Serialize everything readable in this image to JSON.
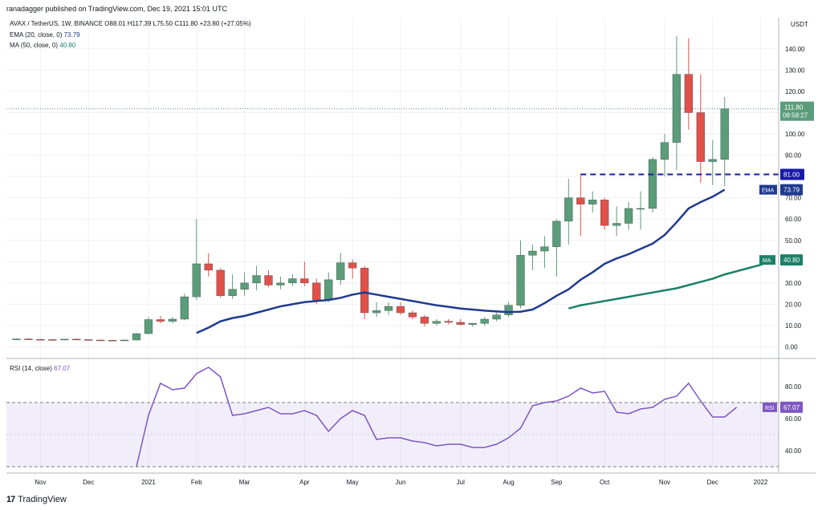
{
  "header": {
    "published": "ranadagger published on TradingView.com, Dec 19, 2021 15:01 UTC",
    "symbol_line": "AVAX / TetherUS, 1W, BINANCE",
    "ohlc": "O88.01 H117.39 L75.50 C111.80 +23.80 (+27.05%)",
    "ema_label": "EMA (20, close, 0)",
    "ema_value": "73.79",
    "ma_label": "MA (50, close, 0)",
    "ma_value": "40.80",
    "rsi_label": "RSI (14, close)",
    "rsi_value": "67.07"
  },
  "currency": "USDT",
  "footer": {
    "logo": "17",
    "brand": "TradingView"
  },
  "colors": {
    "up": "#5b9c7a",
    "down": "#e2504a",
    "ema": "#1f3a8f",
    "ma": "#1b8067",
    "rsi": "#7e57c2",
    "level": "#1a1aa8"
  },
  "chart_data": [
    {
      "type": "candlestick",
      "title": "AVAX / TetherUS, 1W, BINANCE",
      "ylim": [
        -5,
        150
      ],
      "y_ticks": [
        0,
        10,
        20,
        30,
        40,
        50,
        60,
        70,
        80,
        90,
        100,
        110,
        120,
        130,
        140
      ],
      "y_tick_labels": [
        "0.00",
        "10.00",
        "20.00",
        "30.00",
        "40.00",
        "50.00",
        "60.00",
        "70.00",
        "80.00",
        "90.00",
        "100.00",
        "110.00",
        "120.00",
        "130.00",
        "140.00"
      ],
      "x_ticks": [
        {
          "label": "Nov",
          "week": 2
        },
        {
          "label": "Dec",
          "week": 6
        },
        {
          "label": "2021",
          "week": 11
        },
        {
          "label": "Feb",
          "week": 15
        },
        {
          "label": "Mar",
          "week": 19
        },
        {
          "label": "Apr",
          "week": 24
        },
        {
          "label": "May",
          "week": 28
        },
        {
          "label": "Jun",
          "week": 32
        },
        {
          "label": "Jul",
          "week": 37
        },
        {
          "label": "Aug",
          "week": 41
        },
        {
          "label": "Sep",
          "week": 45
        },
        {
          "label": "Oct",
          "week": 49
        },
        {
          "label": "Nov",
          "week": 54
        },
        {
          "label": "Dec",
          "week": 58
        },
        {
          "label": "2022",
          "week": 62
        }
      ],
      "weeks_total": 64,
      "candles": [
        [
          3.6,
          4.0,
          3.3,
          3.7
        ],
        [
          3.7,
          3.9,
          3.4,
          3.5
        ],
        [
          3.5,
          3.8,
          3.2,
          3.4
        ],
        [
          3.4,
          3.6,
          3.1,
          3.3
        ],
        [
          3.3,
          3.7,
          3.1,
          3.6
        ],
        [
          3.6,
          3.9,
          3.3,
          3.4
        ],
        [
          3.4,
          3.6,
          3.0,
          3.2
        ],
        [
          3.2,
          3.4,
          2.9,
          3.1
        ],
        [
          3.1,
          3.3,
          2.8,
          3.0
        ],
        [
          3.0,
          3.4,
          2.7,
          3.2
        ],
        [
          3.2,
          6.5,
          3.0,
          6.2
        ],
        [
          6.2,
          14.0,
          5.8,
          12.8
        ],
        [
          12.8,
          14.5,
          11.0,
          12.0
        ],
        [
          12.0,
          14.0,
          11.0,
          13.0
        ],
        [
          13.0,
          25.0,
          12.5,
          23.5
        ],
        [
          23.5,
          60.0,
          22.0,
          39.0
        ],
        [
          39.0,
          44.0,
          33.0,
          36.0
        ],
        [
          36.0,
          37.0,
          23.0,
          24.0
        ],
        [
          24.0,
          34.0,
          22.5,
          27.0
        ],
        [
          27.0,
          35.0,
          24.0,
          30.0
        ],
        [
          30.0,
          38.0,
          26.5,
          33.5
        ],
        [
          33.5,
          36.0,
          28.0,
          29.0
        ],
        [
          29.0,
          33.0,
          27.0,
          30.0
        ],
        [
          30.0,
          34.0,
          28.5,
          32.0
        ],
        [
          32.0,
          40.0,
          28.5,
          30.0
        ],
        [
          30.0,
          32.0,
          20.0,
          22.0
        ],
        [
          22.0,
          35.0,
          21.0,
          31.5
        ],
        [
          31.5,
          44.0,
          29.0,
          39.5
        ],
        [
          39.5,
          41.0,
          32.0,
          37.0
        ],
        [
          37.0,
          38.0,
          13.0,
          16.0
        ],
        [
          16.0,
          21.0,
          14.0,
          17.0
        ],
        [
          17.0,
          21.0,
          15.0,
          19.0
        ],
        [
          19.0,
          21.0,
          15.0,
          16.0
        ],
        [
          16.0,
          17.0,
          13.0,
          14.0
        ],
        [
          14.0,
          15.0,
          9.5,
          11.0
        ],
        [
          11.0,
          13.0,
          10.0,
          12.0
        ],
        [
          12.0,
          13.0,
          10.5,
          11.5
        ],
        [
          11.5,
          13.0,
          10.0,
          10.5
        ],
        [
          10.5,
          11.0,
          9.5,
          11.0
        ],
        [
          11.0,
          14.0,
          10.0,
          13.0
        ],
        [
          13.0,
          16.0,
          12.0,
          15.0
        ],
        [
          15.0,
          21.0,
          14.0,
          19.5
        ],
        [
          19.5,
          50.0,
          18.0,
          43.0
        ],
        [
          43.0,
          48.0,
          36.0,
          45.0
        ],
        [
          45.0,
          52.0,
          37.0,
          47.0
        ],
        [
          47.0,
          60.0,
          33.0,
          59.0
        ],
        [
          59.0,
          79.0,
          48.0,
          70.0
        ],
        [
          70.0,
          81.0,
          52.0,
          67.0
        ],
        [
          67.0,
          73.0,
          63.0,
          69.0
        ],
        [
          69.0,
          70.0,
          55.0,
          57.0
        ],
        [
          57.0,
          66.0,
          52.0,
          58.0
        ],
        [
          58.0,
          68.0,
          55.0,
          65.0
        ],
        [
          65.0,
          73.0,
          55.0,
          65.0
        ],
        [
          65.0,
          89.0,
          63.0,
          88.0
        ],
        [
          88.0,
          100.0,
          80.0,
          96.0
        ],
        [
          96.0,
          146.0,
          83.0,
          128.0
        ],
        [
          128.0,
          145.0,
          102.0,
          110.0
        ],
        [
          110.0,
          128.0,
          77.0,
          87.0
        ],
        [
          87.0,
          97.0,
          76.0,
          88.0
        ],
        [
          88.01,
          117.39,
          75.5,
          111.8
        ]
      ],
      "ema": {
        "name": "EMA",
        "start_week": 15,
        "values": [
          6.5,
          9.0,
          12.0,
          13.5,
          14.5,
          16.0,
          17.5,
          19.0,
          20.0,
          21.0,
          21.5,
          22.0,
          23.0,
          24.5,
          25.5,
          24.5,
          23.5,
          22.5,
          21.5,
          20.5,
          19.5,
          18.8,
          18.0,
          17.5,
          17.0,
          16.6,
          16.3,
          16.5,
          17.5,
          20.5,
          24.0,
          27.0,
          31.5,
          35.0,
          39.0,
          41.5,
          43.5,
          46.0,
          48.5,
          52.5,
          58.5,
          65.0,
          68.0,
          70.5,
          73.79
        ]
      },
      "ma": {
        "name": "MA",
        "start_week": 46,
        "values": [
          18.0,
          19.5,
          20.5,
          21.5,
          22.5,
          23.5,
          24.5,
          25.5,
          26.5,
          27.5,
          29.0,
          30.5,
          32.0,
          34.0,
          35.5,
          37.0,
          38.5,
          40.8
        ]
      },
      "level": {
        "value": 81.0,
        "label": "81.00",
        "from_week": 47
      },
      "last_price": {
        "label": "111.80",
        "countdown": "08:58:27"
      }
    },
    {
      "type": "line",
      "title": "RSI (14, close)",
      "ylim": [
        25,
        96
      ],
      "y_ticks": [
        40,
        60,
        80
      ],
      "y_tick_labels": [
        "40.00",
        "60.00",
        "80.00"
      ],
      "band": [
        30,
        70
      ],
      "midline": 50,
      "start_week": 10,
      "values": [
        30,
        62,
        82,
        78,
        79,
        88,
        92,
        86,
        62,
        63,
        65,
        67,
        63,
        63,
        65,
        62,
        52,
        60,
        65,
        62,
        47,
        48,
        48,
        46,
        45,
        43,
        44,
        44,
        42,
        42,
        44,
        48,
        54,
        68,
        70,
        71,
        74,
        79,
        76,
        77,
        64,
        63,
        66,
        67,
        72,
        74,
        82,
        71,
        61,
        61,
        67.07
      ],
      "value_label": "67.07",
      "series_label": "RSI"
    }
  ]
}
